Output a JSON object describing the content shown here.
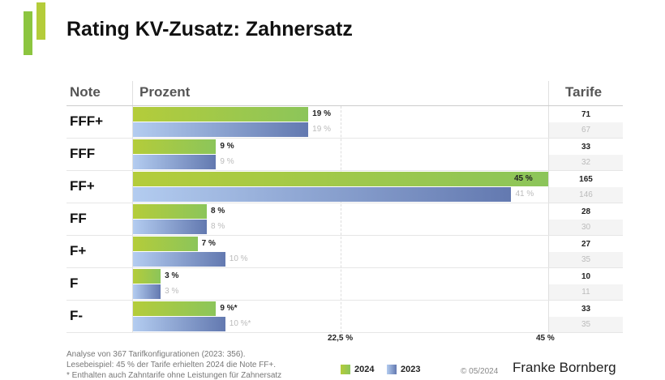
{
  "title": "Rating KV-Zusatz: Zahnersatz",
  "headers": {
    "note": "Note",
    "prozent": "Prozent",
    "tarife": "Tarife"
  },
  "colors": {
    "y2024": "#8cc55a",
    "y2023": "#6379b0",
    "logo": "#8cc53f"
  },
  "chart_data": {
    "type": "bar",
    "title": "Rating KV-Zusatz: Zahnersatz",
    "categories": [
      "FFF+",
      "FFF",
      "FF+",
      "FF",
      "F+",
      "F",
      "F-"
    ],
    "xlim": [
      0,
      45
    ],
    "ticks": [
      "22,5 %",
      "45 %"
    ],
    "series": [
      {
        "name": "2024",
        "values": [
          19,
          9,
          45,
          8,
          7,
          3,
          9
        ],
        "labels": [
          "19 %",
          "9 %",
          "45 %",
          "8 %",
          "7 %",
          "3 %",
          "9 %*"
        ],
        "tarife": [
          71,
          33,
          165,
          28,
          27,
          10,
          33
        ]
      },
      {
        "name": "2023",
        "values": [
          19,
          9,
          41,
          8,
          10,
          3,
          10
        ],
        "labels": [
          "19 %",
          "9 %",
          "41 %",
          "8 %",
          "10 %",
          "3 %",
          "10 %*"
        ],
        "tarife": [
          67,
          32,
          146,
          30,
          35,
          11,
          35
        ]
      }
    ],
    "legend": [
      "2024",
      "2023"
    ]
  },
  "footer": {
    "line1": "Analyse von 367 Tarifkonfigurationen (2023: 356).",
    "line2": "Lesebeispiel: 45 % der Tarife erhielten 2024 die Note FF+.",
    "line3": "* Enthalten auch Zahntarife ohne Leistungen für Zahnersatz",
    "copyright": "© 05/2024",
    "brand": "Franke Bornberg"
  }
}
